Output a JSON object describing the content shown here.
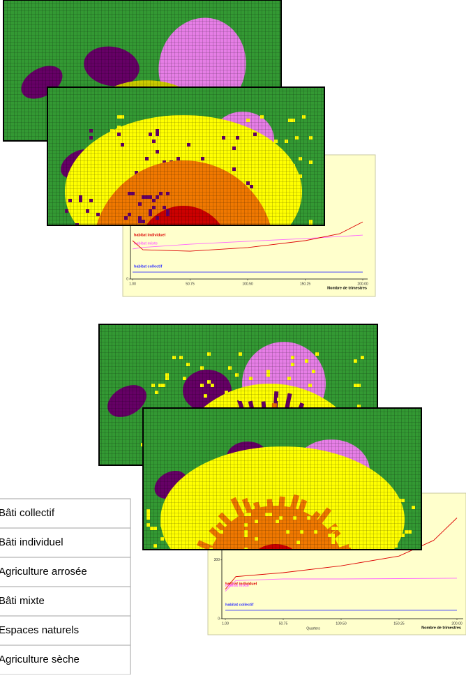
{
  "chart_data": [
    {
      "type": "line",
      "xlabel": "Nombre de trimestres",
      "x": [
        1,
        10,
        50.75,
        100.5,
        150.25,
        180,
        200
      ],
      "xlim": [
        1,
        200
      ],
      "xticks": [
        {
          "value": 1,
          "label": "1.00"
        },
        50.75,
        {
          "value": 100.5,
          "label": "100.50"
        },
        150.25,
        {
          "value": 200,
          "label": "200.00"
        }
      ],
      "ylim": [
        0,
        600
      ],
      "yticks": [
        0
      ],
      "series": [
        {
          "name": "habitat mixte",
          "color": "#ff66ff",
          "values": [
            152,
            160,
            176,
            191,
            205,
            215,
            222
          ]
        },
        {
          "name": "habitat individuel",
          "color": "#dd0000",
          "values": [
            194,
            148,
            141,
            159,
            194,
            229,
            289
          ]
        },
        {
          "name": "habitat collectif",
          "color": "#3333ff",
          "values": [
            35,
            35,
            35,
            35,
            35,
            35,
            35
          ]
        }
      ]
    },
    {
      "type": "line",
      "xlabel": "Nombre de trimestres",
      "xlabel_secondary": "Quarters",
      "x": [
        1,
        10,
        50.75,
        100.5,
        150.25,
        180,
        200
      ],
      "xlim": [
        1,
        200
      ],
      "xticks": [
        {
          "value": 1,
          "label": "1.00"
        },
        50.75,
        {
          "value": 100.5,
          "label": "100.50"
        },
        150.25,
        {
          "value": 200,
          "label": "200.00"
        }
      ],
      "ylim": [
        0,
        620
      ],
      "yticks": [
        0,
        300
      ],
      "series": [
        {
          "name": "habitat individuel",
          "color": "#dd0000",
          "values": [
            150,
            215,
            235,
            270,
            320,
            400,
            515
          ]
        },
        {
          "name": "habitat mixte",
          "color": "#ff66ff",
          "values": [
            140,
            195,
            203,
            203,
            205,
            206,
            207
          ]
        },
        {
          "name": "habitat collectif",
          "color": "#3333ff",
          "values": [
            43,
            43,
            43,
            43,
            43,
            43,
            43
          ]
        }
      ]
    }
  ],
  "legend": {
    "items": [
      "Bâti collectif",
      "Bâti individuel",
      "Agriculture arrosée",
      "Bâti mixte",
      "Espaces naturels",
      "Agriculture sèche"
    ]
  }
}
